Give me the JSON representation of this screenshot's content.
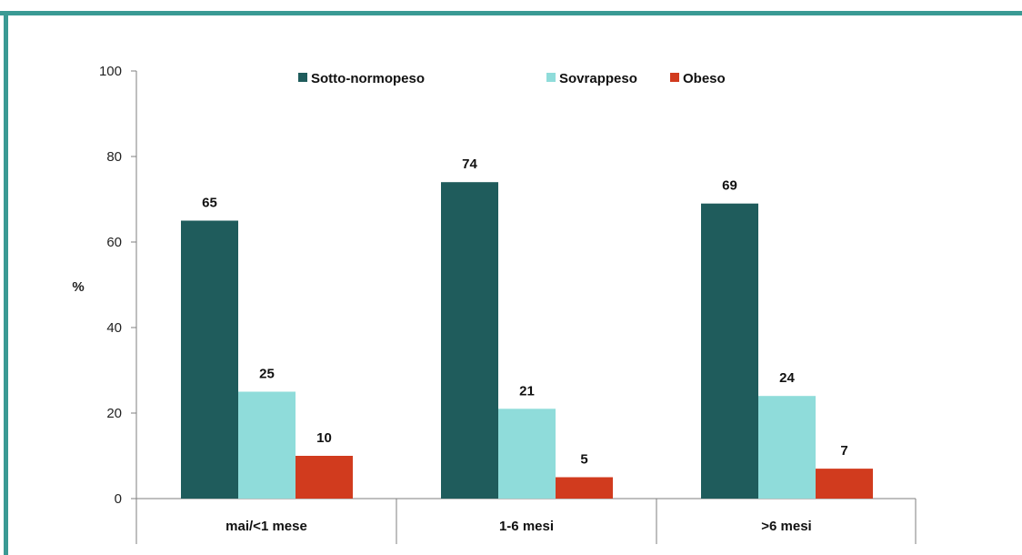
{
  "frame_color": "#3a9a94",
  "chart_data": {
    "type": "bar",
    "title": "",
    "xlabel": "",
    "ylabel": "%",
    "ylim": [
      0,
      100
    ],
    "yticks": [
      "0",
      "20",
      "40",
      "60",
      "80",
      "100"
    ],
    "categories": [
      "mai/<1 mese",
      "1-6 mesi",
      ">6 mesi"
    ],
    "series": [
      {
        "name": "Sotto-normopeso",
        "color": "#1f5c5c",
        "values": [
          65,
          74,
          69
        ]
      },
      {
        "name": "Sovrappeso",
        "color": "#8fdcda",
        "values": [
          25,
          21,
          24
        ]
      },
      {
        "name": "Obeso",
        "color": "#d13b1e",
        "values": [
          10,
          5,
          7
        ]
      }
    ],
    "legend_position": "top",
    "grid": false
  }
}
